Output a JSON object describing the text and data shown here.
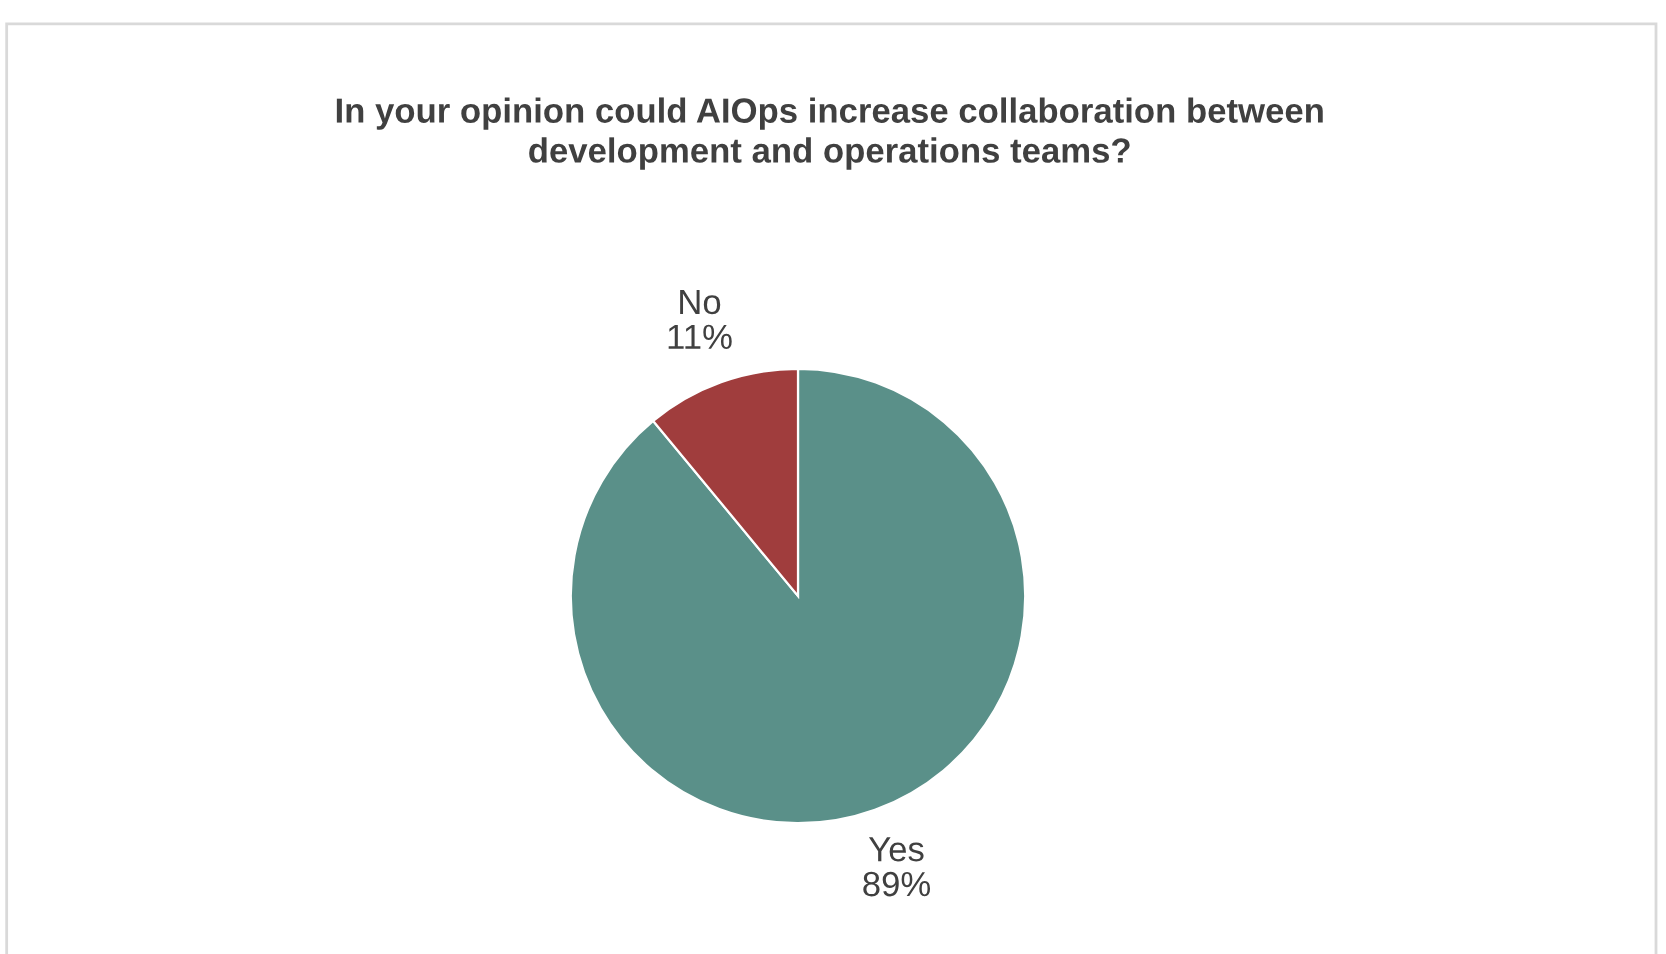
{
  "chart_data": {
    "type": "pie",
    "title": "In your opinion could AIOps increase collaboration between\ndevelopment and operations teams?",
    "categories": [
      "Yes",
      "No"
    ],
    "values": [
      89,
      11
    ],
    "colors": [
      "#5a9089",
      "#a03d3d"
    ],
    "value_labels": [
      "89%",
      "11%"
    ],
    "legend": false
  }
}
